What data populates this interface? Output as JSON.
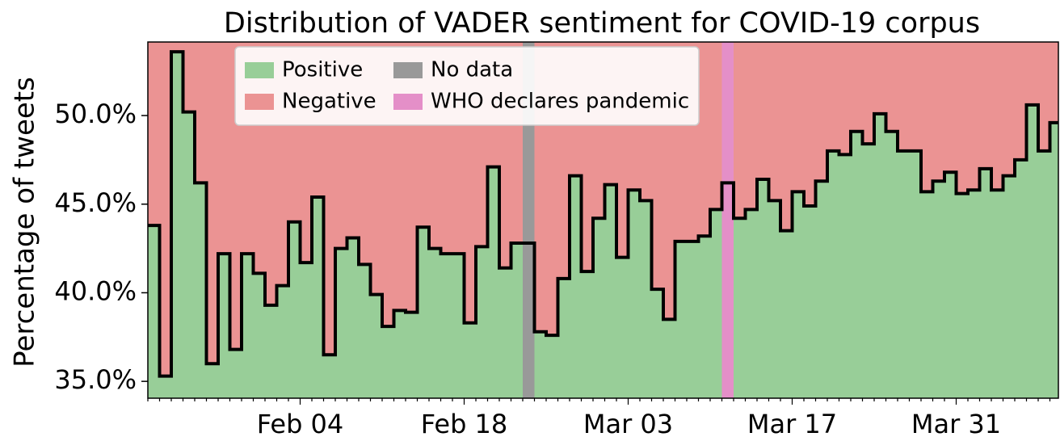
{
  "chart_data": {
    "type": "step",
    "title": "Distribution of VADER sentiment for COVID-19 corpus",
    "ylabel": "Percentage of tweets",
    "categories": [
      null,
      null,
      null,
      null,
      null,
      null,
      null,
      null,
      null,
      null,
      null,
      null,
      null,
      "Feb 04",
      null,
      null,
      null,
      null,
      null,
      null,
      null,
      null,
      null,
      null,
      null,
      null,
      null,
      "Feb 18",
      null,
      null,
      null,
      null,
      null,
      null,
      null,
      null,
      null,
      null,
      null,
      null,
      null,
      "Mar 03",
      null,
      null,
      null,
      null,
      null,
      null,
      null,
      null,
      null,
      null,
      null,
      null,
      null,
      "Mar 17",
      null,
      null,
      null,
      null,
      null,
      null,
      null,
      null,
      null,
      null,
      null,
      null,
      null,
      "Mar 31",
      null,
      null,
      null,
      null,
      null,
      null,
      null,
      null
    ],
    "series": [
      {
        "name": "Positive",
        "color": "#98ce98",
        "values": [
          43.8,
          35.3,
          53.6,
          50.2,
          46.2,
          36.0,
          42.2,
          36.8,
          42.2,
          41.1,
          39.3,
          40.4,
          44.0,
          41.7,
          45.4,
          36.5,
          42.5,
          43.1,
          41.6,
          39.9,
          38.1,
          39.0,
          38.9,
          43.7,
          42.5,
          42.2,
          42.2,
          38.3,
          42.6,
          47.1,
          41.4,
          42.8,
          42.8,
          37.8,
          37.6,
          40.8,
          46.6,
          41.2,
          44.2,
          46.1,
          42.0,
          45.8,
          45.2,
          40.2,
          38.5,
          42.9,
          42.9,
          43.2,
          44.7,
          46.2,
          44.2,
          44.7,
          46.4,
          45.2,
          43.5,
          45.7,
          44.9,
          46.3,
          48.0,
          47.8,
          49.1,
          48.4,
          50.1,
          49.1,
          48.0,
          48.0,
          45.7,
          46.3,
          46.8,
          45.6,
          45.8,
          47.0,
          45.8,
          46.6,
          47.5,
          50.6,
          48.0,
          49.6
        ]
      },
      {
        "name": "Negative",
        "color": "#eb9393"
      }
    ],
    "spans": [
      {
        "name": "No data",
        "color": "#999999",
        "index": 32
      },
      {
        "name": "WHO declares pandemic",
        "color": "#e48fc8",
        "index": 49
      }
    ],
    "ylim": [
      34.05,
      54.15
    ],
    "yticks": [
      {
        "value": 35,
        "label": "35.0%"
      },
      {
        "value": 40,
        "label": "40.0%"
      },
      {
        "value": 45,
        "label": "45.0%"
      },
      {
        "value": 50,
        "label": "50.0%"
      }
    ]
  }
}
